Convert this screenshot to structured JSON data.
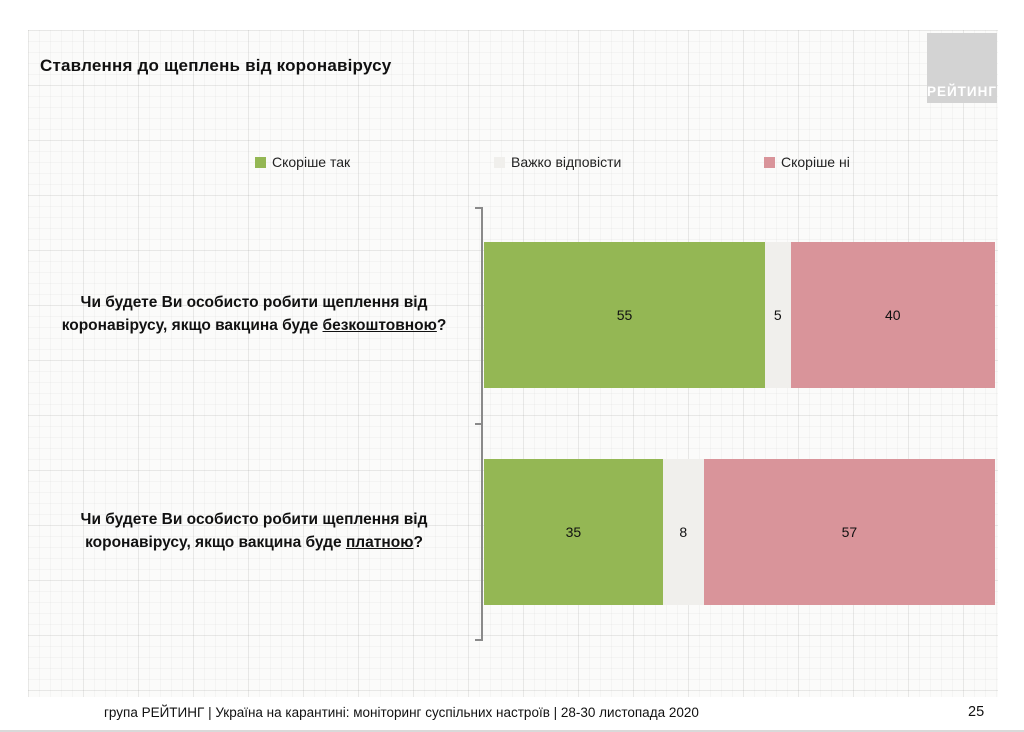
{
  "slide": {
    "title": "Ставлення до щеплень від коронавірусу",
    "logo_text": "РЕЙТИНГ",
    "footer": "група РЕЙТИНГ | Україна на карантині: моніторинг суспільних настроїв | 28-30 листопада 2020",
    "page_number": "25"
  },
  "colors": {
    "yes_green": "#94B754",
    "hard_gray": "#F0EFEC",
    "no_pink": "#D9949A",
    "logo_bg": "#D3D3D3",
    "axis_gray": "#8A8A8A"
  },
  "chart_data": {
    "type": "bar",
    "orientation": "horizontal",
    "stacked": true,
    "title": "Ставлення до щеплень від коронавірусу",
    "xlim": [
      0,
      100
    ],
    "grid": "graph-paper background",
    "legend_position": "top",
    "legend": [
      "Скоріше так",
      "Важко відповісти",
      "Скоріше ні"
    ],
    "categories": [
      "Чи будете Ви особисто робити щеплення від коронавірусу, якщо вакцина буде безкоштовною?",
      "Чи будете Ви особисто робити щеплення від коронавірусу, якщо вакцина буде платною?"
    ],
    "series": [
      {
        "name": "Скоріше так",
        "color": "#94B754",
        "values": [
          55,
          35
        ]
      },
      {
        "name": "Важко відповісти",
        "color": "#F0EFEC",
        "values": [
          5,
          8
        ]
      },
      {
        "name": "Скоріше ні",
        "color": "#D9949A",
        "values": [
          40,
          57
        ]
      }
    ],
    "rows": [
      {
        "question_prefix": "Чи будете Ви особисто робити щеплення від коронавірусу, якщо вакцина буде ",
        "question_underlined": "безкоштовною",
        "question_suffix": "?",
        "values": [
          55,
          5,
          40
        ]
      },
      {
        "question_prefix": "Чи будете Ви особисто робити щеплення від коронавірусу, якщо вакцина буде ",
        "question_underlined": "платною",
        "question_suffix": "?",
        "values": [
          35,
          8,
          57
        ]
      }
    ],
    "data_labels": true
  }
}
